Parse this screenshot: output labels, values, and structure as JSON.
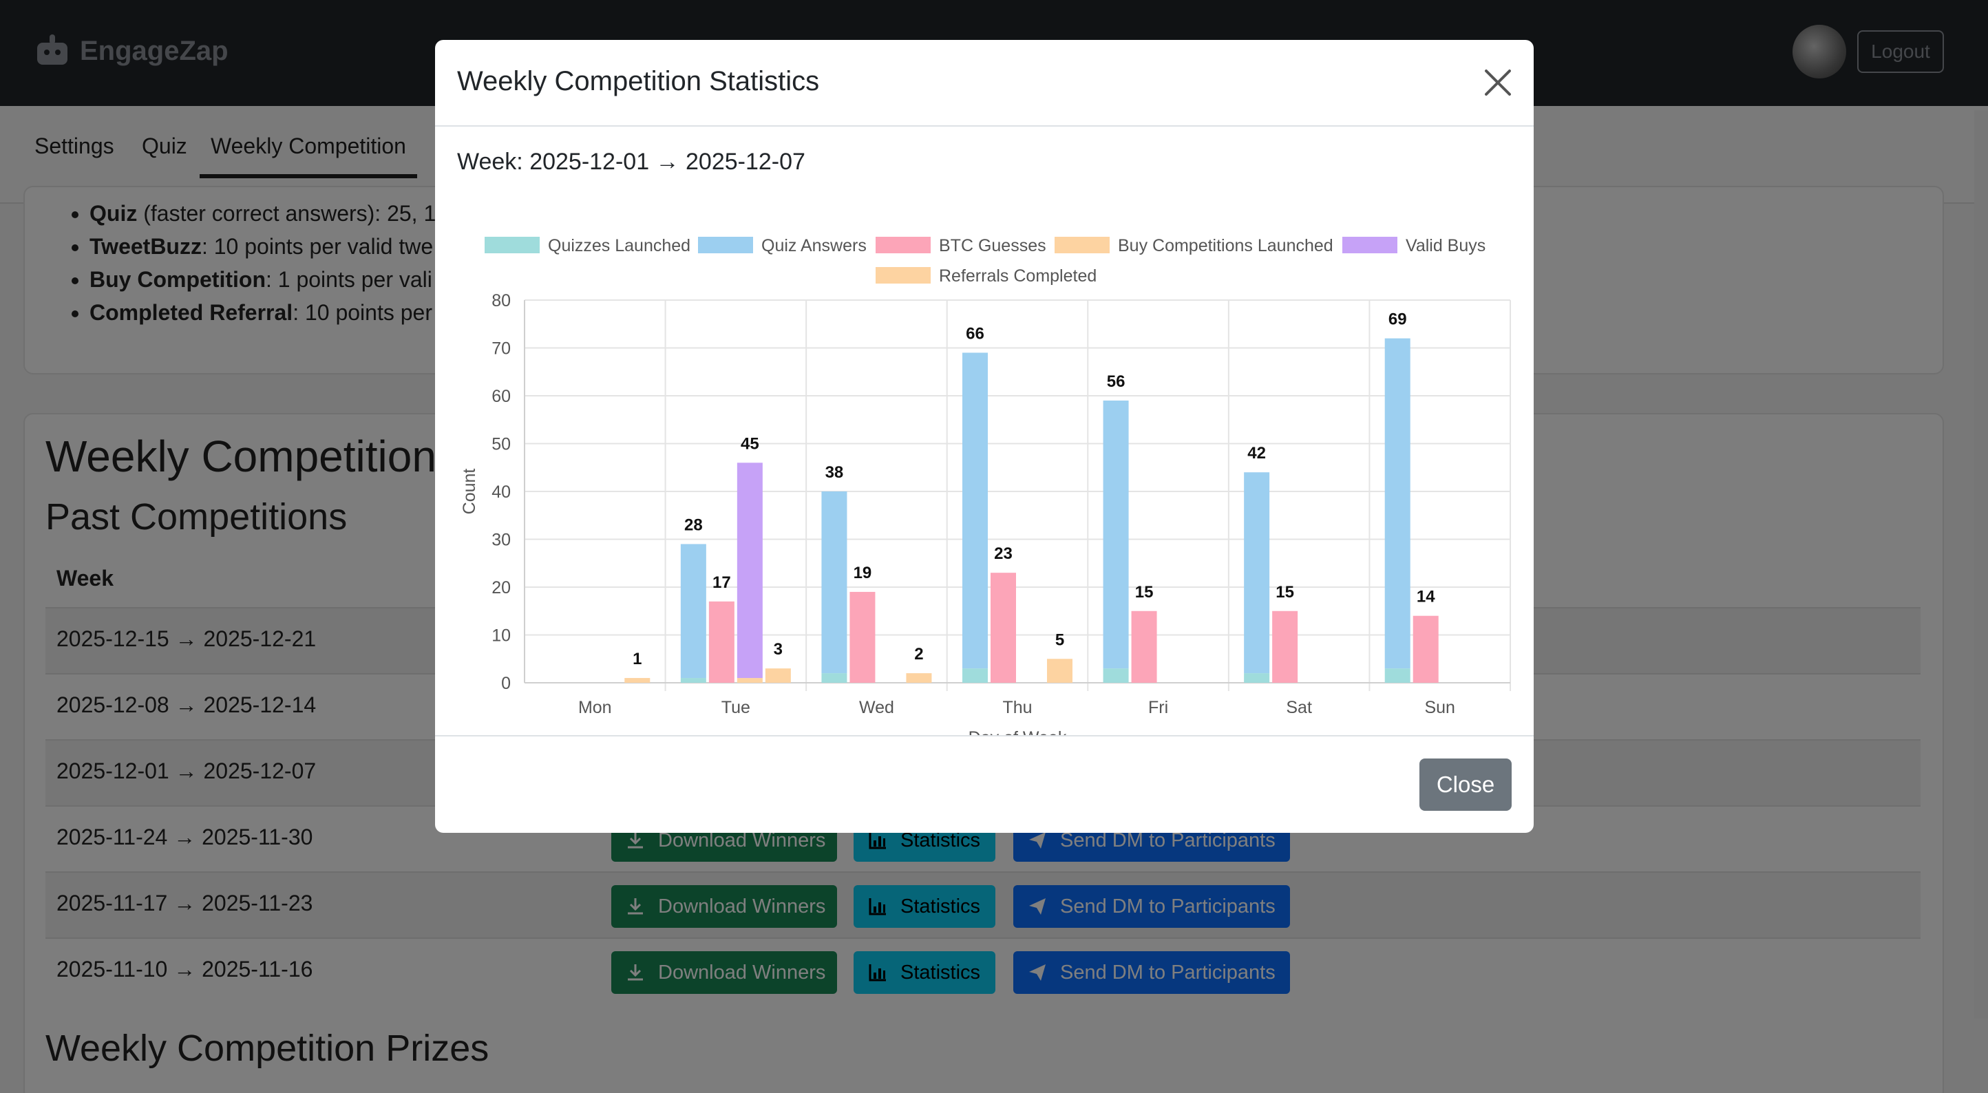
{
  "navbar": {
    "brand": "EngageZap",
    "logout_label": "Logout"
  },
  "tabs": [
    "Settings",
    "Quiz",
    "Weekly Competition"
  ],
  "rules": [
    {
      "bold": "Quiz",
      "text": " (faster correct answers): 25, 1"
    },
    {
      "bold": "TweetBuzz",
      "text": ": 10 points per valid twe"
    },
    {
      "bold": "Buy Competition",
      "text": ": 1 points per vali"
    },
    {
      "bold": "Completed Referral",
      "text": ": 10 points per"
    }
  ],
  "page": {
    "heading": "Weekly Competition",
    "past_heading": "Past Competitions",
    "week_column": "Week",
    "prizes_heading": "Weekly Competition Prizes"
  },
  "past_weeks": [
    "2025-12-15 → 2025-12-21",
    "2025-12-08 → 2025-12-14",
    "2025-12-01 → 2025-12-07",
    "2025-11-24 → 2025-11-30",
    "2025-11-17 → 2025-11-23",
    "2025-11-10 → 2025-11-16"
  ],
  "row_buttons": {
    "download": "Download Winners",
    "statistics": "Statistics",
    "send_dm": "Send DM to Participants"
  },
  "modal": {
    "title": "Weekly Competition Statistics",
    "week_label": "Week: 2025-12-01 → 2025-12-07",
    "close_label": "Close"
  },
  "chart_data": {
    "type": "bar",
    "categories": [
      "Mon",
      "Tue",
      "Wed",
      "Thu",
      "Fri",
      "Sat",
      "Sun"
    ],
    "series": [
      {
        "name": "Quizzes Launched",
        "color": "#9fdcdc",
        "values": [
          0,
          1,
          2,
          3,
          3,
          2,
          3
        ]
      },
      {
        "name": "Quiz Answers",
        "color": "#9ccff0",
        "values": [
          0,
          28,
          38,
          66,
          56,
          42,
          69
        ]
      },
      {
        "name": "BTC Guesses",
        "color": "#fca5b8",
        "values": [
          0,
          17,
          19,
          23,
          15,
          15,
          14
        ]
      },
      {
        "name": "Buy Competitions Launched",
        "color": "#fdd3a1",
        "values": [
          0,
          1,
          0,
          0,
          0,
          0,
          0
        ]
      },
      {
        "name": "Valid Buys",
        "color": "#c6a2f7",
        "values": [
          0,
          45,
          0,
          0,
          0,
          0,
          0
        ]
      },
      {
        "name": "Referrals Completed",
        "color": "#fdd3a1",
        "values": [
          1,
          3,
          2,
          5,
          0,
          0,
          0
        ]
      }
    ],
    "xlabel": "Day of Week",
    "ylabel": "Count",
    "ylim": [
      0,
      80
    ],
    "yticks": [
      0,
      10,
      20,
      30,
      40,
      50,
      60,
      70,
      80
    ],
    "grid": true,
    "legend": "top"
  }
}
